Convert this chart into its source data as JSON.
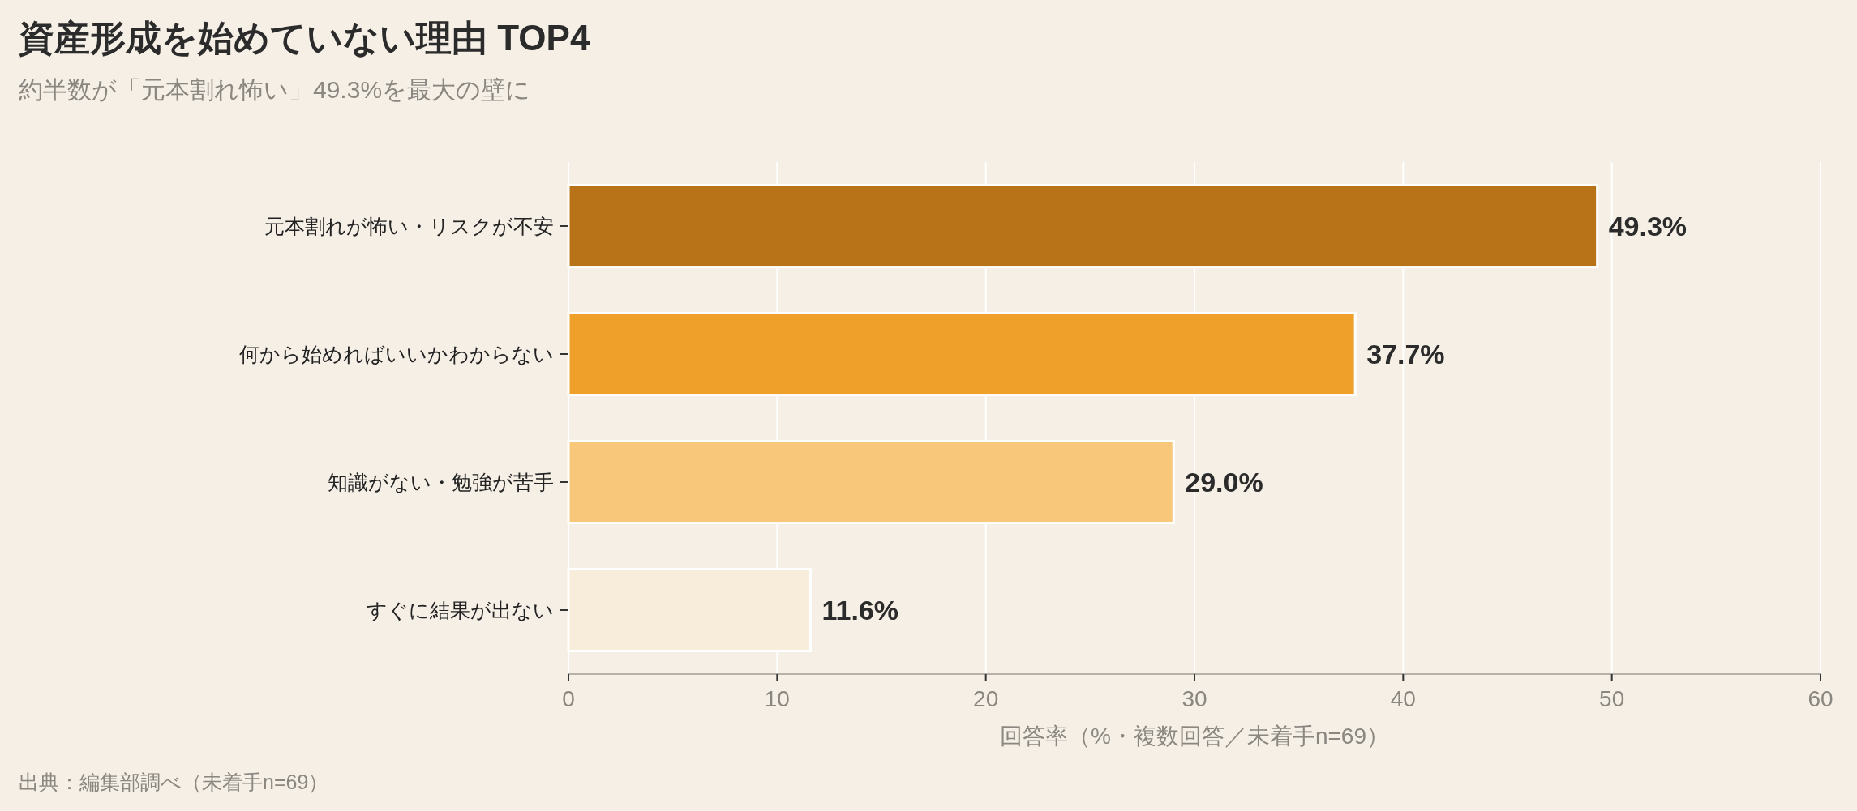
{
  "chart_data": {
    "type": "bar",
    "orientation": "horizontal",
    "title": "資産形成を始めていない理由 TOP4",
    "subtitle": "約半数が「元本割れ怖い」49.3%を最大の壁に",
    "categories": [
      "元本割れが怖い・リスクが不安",
      "何から始めればいいかわからない",
      "知識がない・勉強が苦手",
      "すぐに結果が出ない"
    ],
    "values": [
      49.3,
      37.7,
      29.0,
      11.6
    ],
    "colors": [
      "#b87318",
      "#efa02a",
      "#f8c77a",
      "#f8ecdb"
    ],
    "value_labels": [
      "49.3%",
      "37.7%",
      "29.0%",
      "11.6%"
    ],
    "xlim": [
      0,
      60
    ],
    "xticks": [
      0,
      10,
      20,
      30,
      40,
      50,
      60
    ],
    "xlabel": "回答率（%・複数回答／未着手n=69）",
    "grid": "x",
    "annotations": [
      "出典：編集部調べ（未着手n=69）"
    ]
  }
}
